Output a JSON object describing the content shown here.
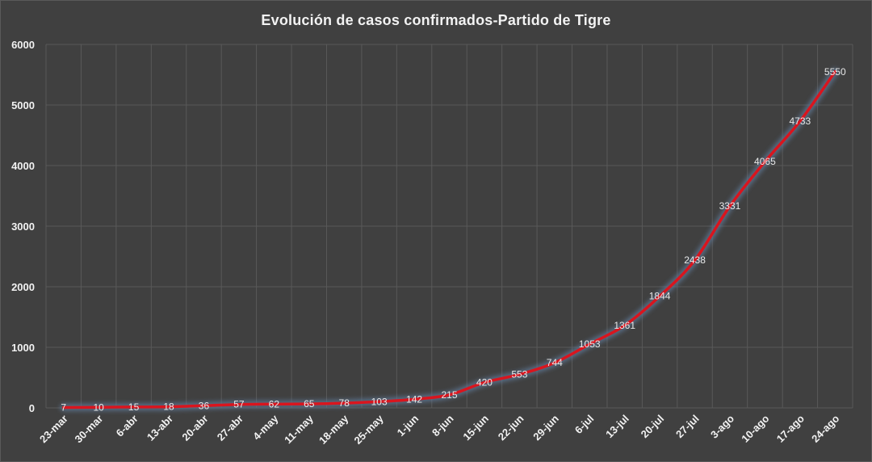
{
  "chart_data": {
    "type": "line",
    "title": "Evolución  de casos confirmados-Partido  de Tigre",
    "xlabel": "",
    "ylabel": "",
    "categories": [
      "23-mar",
      "30-mar",
      "6-abr",
      "13-abr",
      "20-abr",
      "27-abr",
      "4-may",
      "11-may",
      "18-may",
      "25-may",
      "1-jun",
      "8-jun",
      "15-jun",
      "22-jun",
      "29-jun",
      "6-jul",
      "13-jul",
      "20-jul",
      "27-jul",
      "3-ago",
      "10-ago",
      "17-ago",
      "24-ago"
    ],
    "series": [
      {
        "values": [
          7,
          10,
          15,
          18,
          36,
          57,
          62,
          65,
          78,
          103,
          142,
          215,
          420,
          553,
          744,
          1053,
          1361,
          1844,
          2438,
          3331,
          4065,
          4733,
          5550
        ]
      }
    ],
    "ylim": [
      0,
      6000
    ],
    "yticks": [
      "0",
      "1000",
      "2000",
      "3000",
      "4000",
      "5000",
      "6000"
    ],
    "grid": true,
    "legend": "none",
    "colors": {
      "background": "#404040",
      "line": "#d9151e",
      "glow": "#5f7896",
      "grid": "#595959",
      "text": "#f2f2f2"
    }
  }
}
